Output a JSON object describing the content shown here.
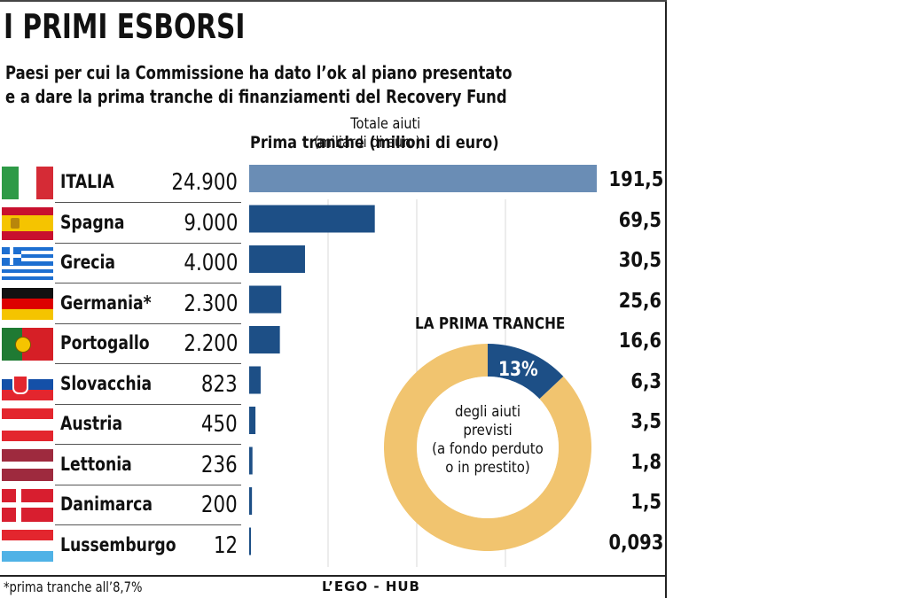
{
  "title": "I PRIMI ESBORSI",
  "subtitle_lines": [
    "Paesi per cui la Commissione ha dato l’ok al piano presentato",
    "e a dare la prima tranche di finanziamenti del Recovery Fund"
  ],
  "header_prima": "Prima tranche (milioni di euro)",
  "header_total_lines": [
    "Totale aiuti",
    "(miliardi di euro)"
  ],
  "chart_data": {
    "type": "bar",
    "orientation": "horizontal",
    "categories": [
      "ITALIA",
      "Spagna",
      "Grecia",
      "Germania*",
      "Portogallo",
      "Slovacchia",
      "Austria",
      "Lettonia",
      "Danimarca",
      "Lussemburgo"
    ],
    "values": [
      24900,
      9000,
      4000,
      2300,
      2200,
      823,
      450,
      236,
      200,
      12
    ],
    "value_labels": [
      "24.900",
      "9.000",
      "4.000",
      "2.300",
      "2.200",
      "823",
      "450",
      "236",
      "200",
      "12"
    ],
    "totals": [
      "191,5",
      "69,5",
      "30,5",
      "25,6",
      "16,6",
      "6,3",
      "3,5",
      "1,8",
      "1,5",
      "0,093"
    ],
    "bar_colors": [
      "#6a8db5",
      "#1d4f86"
    ],
    "xlim": [
      0,
      24900
    ],
    "grid": true,
    "donut": {
      "title": "LA PRIMA TRANCHE",
      "value": 13,
      "label": "13%",
      "text_lines": [
        "degli aiuti",
        "previsti",
        "(a fondo perduto",
        "o in prestito)"
      ],
      "colors": {
        "highlight": "#1d4f86",
        "rest": "#f1c46f"
      }
    }
  },
  "flags": [
    "italy-flag",
    "spain-flag",
    "greece-flag",
    "germany-flag",
    "portugal-flag",
    "slovakia-flag",
    "austria-flag",
    "latvia-flag",
    "denmark-flag",
    "luxembourg-flag"
  ],
  "footnote": "*prima tranche all’8,7%",
  "credit": "L’EGO - HUB"
}
